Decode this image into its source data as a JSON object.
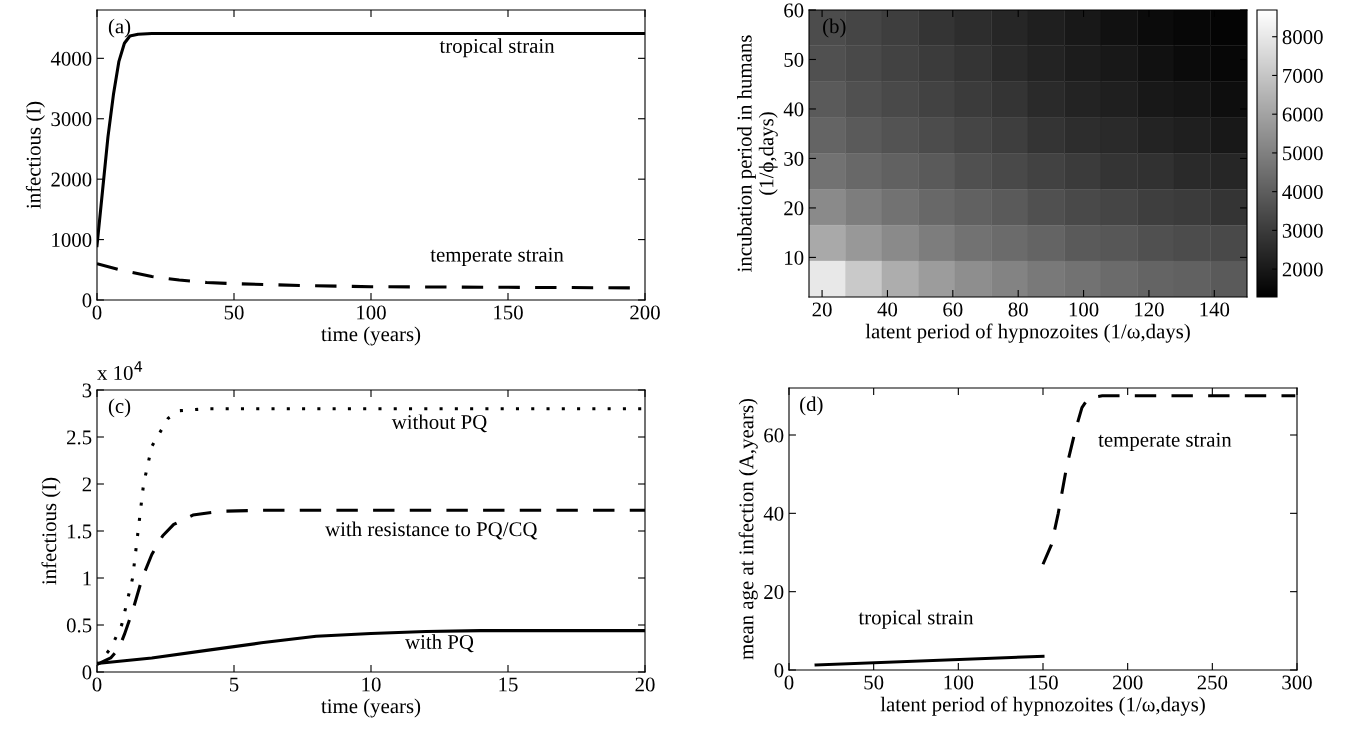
{
  "chart_data": [
    {
      "type": "line",
      "xlabel": "time (years)",
      "ylabel": "infectious (I)",
      "xlim": [
        0,
        200
      ],
      "xticks": [
        0,
        50,
        100,
        150,
        200
      ],
      "ylim": [
        0,
        4800
      ],
      "yticks": [
        0,
        1000,
        2000,
        3000,
        4000
      ],
      "series": [
        {
          "color": "#000000",
          "line_style": "solid",
          "x": [
            0,
            2,
            4,
            6,
            8,
            10,
            12,
            15,
            20,
            200
          ],
          "values": [
            900,
            1800,
            2700,
            3400,
            3950,
            4250,
            4370,
            4400,
            4410,
            4410
          ]
        },
        {
          "color": "#000000",
          "line_style": "dashed",
          "x": [
            0,
            10,
            20,
            30,
            40,
            50,
            75,
            100,
            150,
            200
          ],
          "values": [
            600,
            480,
            390,
            330,
            290,
            270,
            240,
            220,
            210,
            200
          ]
        }
      ],
      "annotations": [
        "(a)",
        "tropical strain",
        "temperate strain"
      ]
    },
    {
      "type": "heatmap",
      "xlabel": "latent period of hypnozoites (1/ω,days)",
      "ylabel": "incubation period in humans\n(1/ϕ,days)",
      "xlim": [
        16,
        150
      ],
      "xticks": [
        20,
        40,
        60,
        80,
        100,
        120,
        140
      ],
      "ylim": [
        2,
        60
      ],
      "yticks": [
        10,
        20,
        30,
        40,
        50,
        60
      ],
      "clim": [
        1280,
        8690
      ],
      "cticks": [
        2000,
        3000,
        4000,
        5000,
        6000,
        7000,
        8000
      ],
      "cells": [
        [
          3500,
          3300,
          3100,
          2800,
          2600,
          2400,
          2200,
          2000,
          1800,
          1600,
          1500,
          1400
        ],
        [
          3600,
          3400,
          3200,
          3000,
          2800,
          2500,
          2300,
          2100,
          2000,
          1800,
          1600,
          1500
        ],
        [
          3900,
          3600,
          3400,
          3200,
          3000,
          2800,
          2500,
          2300,
          2200,
          2000,
          1900,
          1700
        ],
        [
          4200,
          3900,
          3700,
          3500,
          3300,
          3100,
          2800,
          2600,
          2500,
          2300,
          2200,
          2000
        ],
        [
          4600,
          4300,
          4100,
          3900,
          3600,
          3400,
          3200,
          3000,
          2800,
          2700,
          2500,
          2400
        ],
        [
          5300,
          4900,
          4600,
          4300,
          4100,
          3900,
          3600,
          3400,
          3300,
          3100,
          3000,
          2800
        ],
        [
          6200,
          5700,
          5300,
          4900,
          4600,
          4400,
          4200,
          3900,
          3800,
          3600,
          3500,
          3400
        ],
        [
          8000,
          7100,
          6300,
          5800,
          5400,
          5100,
          4800,
          4600,
          4400,
          4200,
          4100,
          3900
        ]
      ],
      "annotations": [
        "(b)"
      ]
    },
    {
      "type": "line",
      "xlabel": "time (years)",
      "ylabel": "infectious (I)",
      "xlim": [
        0,
        20
      ],
      "xticks": [
        0,
        5,
        10,
        15,
        20
      ],
      "ylim": [
        0,
        3
      ],
      "yticks": [
        0,
        0.5,
        1,
        1.5,
        2,
        2.5,
        3
      ],
      "series": [
        {
          "color": "#000000",
          "line_style": "dotted",
          "x": [
            0,
            0.5,
            0.9,
            1.3,
            1.5,
            1.7,
            2.0,
            2.2,
            2.6,
            3.0,
            4,
            20
          ],
          "values": [
            0.08,
            0.25,
            0.5,
            1.0,
            1.5,
            2.0,
            2.4,
            2.5,
            2.7,
            2.78,
            2.8,
            2.8
          ]
        },
        {
          "color": "#000000",
          "line_style": "dashed",
          "x": [
            0,
            0.5,
            0.8,
            1.0,
            1.3,
            1.65,
            2.0,
            2.4,
            2.8,
            3.5,
            4.5,
            6,
            20
          ],
          "values": [
            0.08,
            0.15,
            0.25,
            0.4,
            0.65,
            1.0,
            1.25,
            1.45,
            1.57,
            1.67,
            1.71,
            1.72,
            1.72
          ]
        },
        {
          "color": "#000000",
          "line_style": "solid",
          "x": [
            0,
            2,
            4,
            6,
            8,
            10,
            12,
            14,
            20
          ],
          "values": [
            0.09,
            0.15,
            0.23,
            0.31,
            0.38,
            0.41,
            0.43,
            0.44,
            0.44
          ]
        }
      ],
      "annotations": [
        "(c)",
        "x 10$^{4}$",
        "without PQ",
        "with resistance to PQ/CQ",
        "with PQ"
      ]
    },
    {
      "type": "line",
      "xlabel": "latent period of hypnozoites (1/ω,days)",
      "ylabel": "mean age at infection (A,years)",
      "xlim": [
        0,
        300
      ],
      "xticks": [
        0,
        50,
        100,
        150,
        200,
        250,
        300
      ],
      "ylim": [
        0,
        72
      ],
      "yticks": [
        0,
        20,
        40,
        60
      ],
      "series": [
        {
          "color": "#000000",
          "line_style": "solid",
          "x": [
            16,
            150
          ],
          "values": [
            1.3,
            3.5
          ]
        },
        {
          "color": "#000000",
          "line_style": "dashed",
          "x": [
            150,
            155,
            159,
            164,
            169,
            173,
            177,
            185,
            299
          ],
          "values": [
            27,
            32,
            40,
            52,
            61,
            67,
            69.5,
            70,
            70
          ]
        }
      ],
      "annotations": [
        "(d)",
        "tropical strain",
        "temperate strain"
      ]
    }
  ]
}
